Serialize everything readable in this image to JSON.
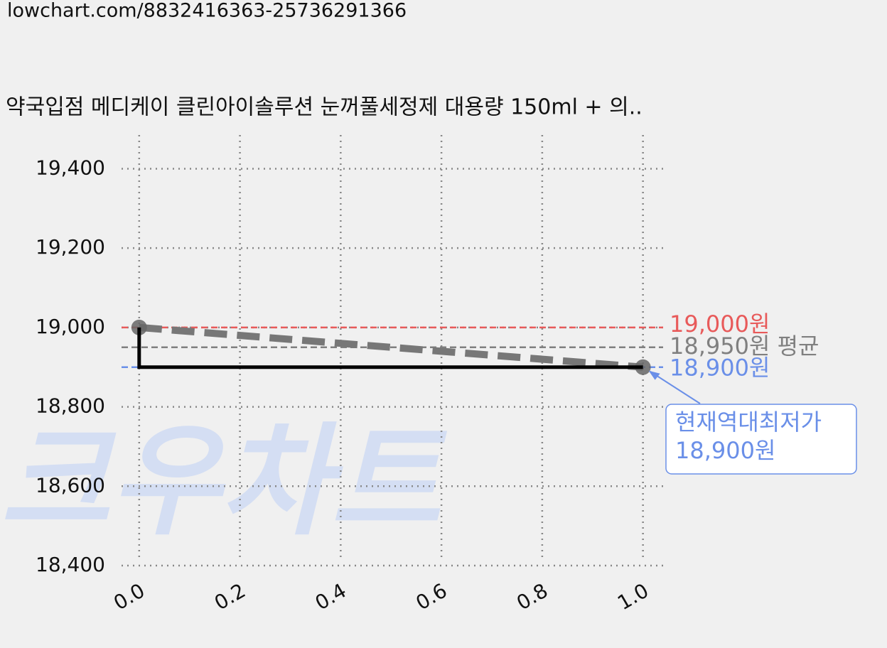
{
  "chart_data": {
    "type": "line",
    "url": "lowchart.com/8832416363-25736291366",
    "title": "약국입점 메디케이 클린아이솔루션 눈꺼풀세정제 대용량 150ml + 의..",
    "watermark": "크우차트",
    "xlim": [
      -0.035,
      1.04
    ],
    "ylim": [
      18400,
      19485
    ],
    "xticks": [
      {
        "value": 0,
        "label": "0.0"
      },
      0.2,
      0.4,
      0.6,
      0.8,
      {
        "value": 1,
        "label": "1.0"
      }
    ],
    "yticks": [
      {
        "value": 18400,
        "label": "18,400"
      },
      {
        "value": 18600,
        "label": "18,600"
      },
      {
        "value": 18800,
        "label": "18,800"
      },
      {
        "value": 19000,
        "label": "19,000"
      },
      {
        "value": 19200,
        "label": "19,200"
      },
      {
        "value": 19400,
        "label": "19,400"
      }
    ],
    "grid": true,
    "series": [
      {
        "color": "#777777",
        "x": [
          0,
          1
        ],
        "values": [
          19000,
          18900
        ],
        "linestyle": "dashed",
        "marker": true
      },
      {
        "color": "#000000",
        "x": [
          0,
          1
        ],
        "values": [
          19000,
          18900
        ],
        "drawstyle": "steps-pre"
      }
    ],
    "hlines": [
      {
        "value": 19000,
        "color": "#e85a5a",
        "label": "19,000원"
      },
      {
        "value": 18950,
        "color": "#808080",
        "label": "18,950원 평균"
      },
      {
        "value": 18900,
        "color": "#6a8fe8",
        "label": "18,900원"
      }
    ],
    "annotation": {
      "x": 1,
      "y": 18900,
      "lines": [
        "현재역대최저가",
        "18,900원"
      ]
    }
  }
}
